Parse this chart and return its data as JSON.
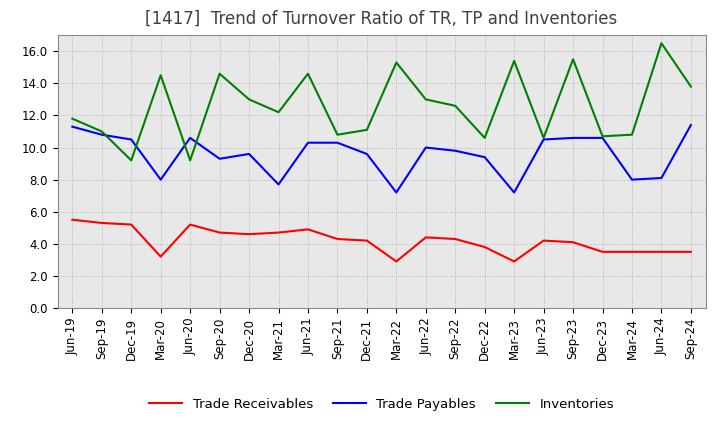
{
  "title": "[1417]  Trend of Turnover Ratio of TR, TP and Inventories",
  "ylim": [
    0.0,
    17.0
  ],
  "yticks": [
    0.0,
    2.0,
    4.0,
    6.0,
    8.0,
    10.0,
    12.0,
    14.0,
    16.0
  ],
  "ytick_labels": [
    "0.0",
    "2.0",
    "4.0",
    "6.0",
    "8.0",
    "10.0",
    "12.0",
    "14.0",
    "16.0"
  ],
  "legend_labels": [
    "Trade Receivables",
    "Trade Payables",
    "Inventories"
  ],
  "x_labels": [
    "Jun-19",
    "Sep-19",
    "Dec-19",
    "Mar-20",
    "Jun-20",
    "Sep-20",
    "Dec-20",
    "Mar-21",
    "Jun-21",
    "Sep-21",
    "Dec-21",
    "Mar-22",
    "Jun-22",
    "Sep-22",
    "Dec-22",
    "Mar-23",
    "Jun-23",
    "Sep-23",
    "Dec-23",
    "Mar-24",
    "Jun-24",
    "Sep-24"
  ],
  "trade_receivables": [
    5.5,
    5.3,
    5.2,
    3.2,
    5.2,
    4.7,
    4.6,
    4.7,
    4.9,
    4.3,
    4.2,
    2.9,
    4.4,
    4.3,
    3.8,
    2.9,
    4.2,
    4.1,
    3.5,
    3.5,
    3.5,
    3.5
  ],
  "trade_payables": [
    11.3,
    10.8,
    10.5,
    8.0,
    10.6,
    9.3,
    9.6,
    7.7,
    10.3,
    10.3,
    9.6,
    7.2,
    10.0,
    9.8,
    9.4,
    7.2,
    10.5,
    10.6,
    10.6,
    8.0,
    8.1,
    11.4
  ],
  "inventories": [
    11.8,
    11.0,
    9.2,
    14.5,
    9.2,
    14.6,
    13.0,
    12.2,
    14.6,
    10.8,
    11.1,
    15.3,
    13.0,
    12.6,
    10.6,
    15.4,
    10.6,
    15.5,
    10.7,
    10.8,
    16.5,
    13.8
  ],
  "line_colors": [
    "#ff0000",
    "#0000ff",
    "#008000"
  ],
  "background_color": "#ffffff",
  "grid_color": "#aaaaaa",
  "plot_bg_color": "#e8e8e8",
  "title_fontsize": 12,
  "tick_fontsize": 8.5,
  "legend_fontsize": 9.5
}
